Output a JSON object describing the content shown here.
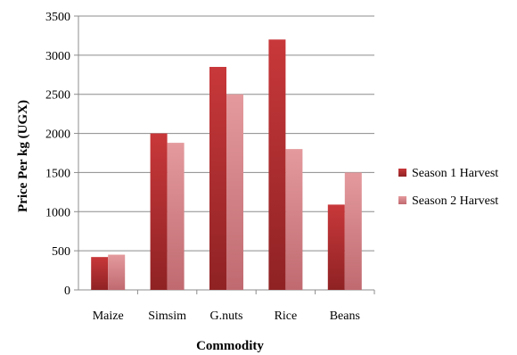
{
  "chart_data": {
    "type": "bar",
    "title": "",
    "xlabel": "Commodity",
    "ylabel": "Price Per kg (UGX)",
    "ylim": [
      0,
      3500
    ],
    "yticks": [
      0,
      500,
      1000,
      1500,
      2000,
      2500,
      3000,
      3500
    ],
    "categories": [
      "Maize",
      "Simsim",
      "G.nuts",
      "Rice",
      "Beans"
    ],
    "series": [
      {
        "name": "Season 1 Harvest",
        "values": [
          420,
          2000,
          2850,
          3200,
          1090
        ],
        "color": "#c0302f"
      },
      {
        "name": "Season 2 Harvest",
        "values": [
          450,
          1880,
          2500,
          1800,
          1500
        ],
        "color": "#d9858a"
      }
    ],
    "grid": true,
    "legend_position": "right"
  }
}
